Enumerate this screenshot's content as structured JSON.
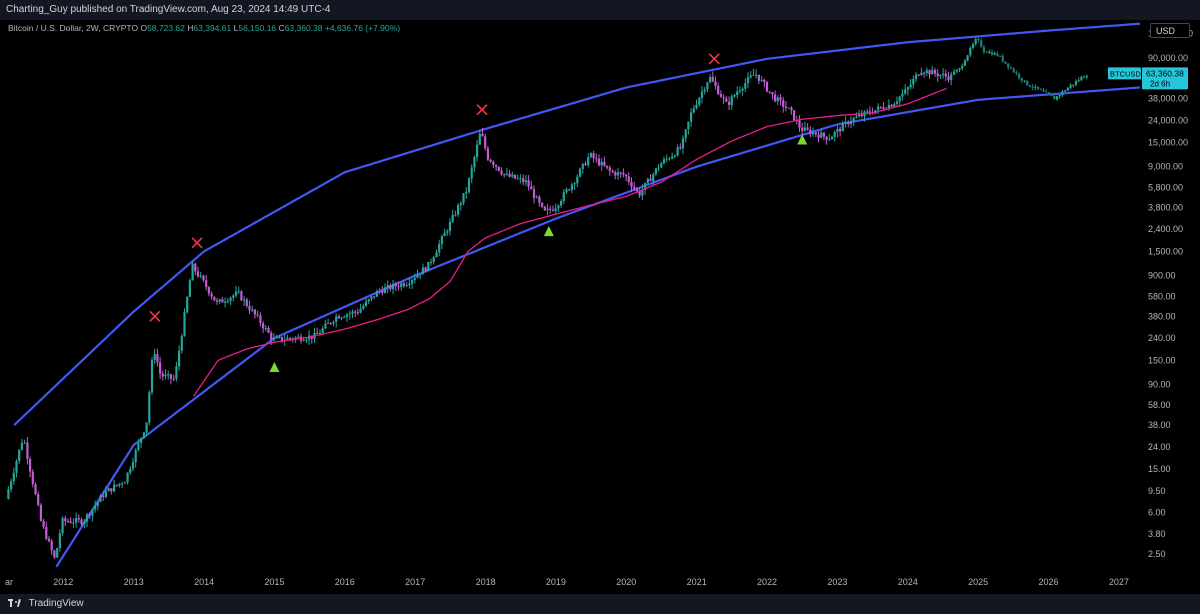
{
  "header": {
    "publish_line": "Charting_Guy published on TradingView.com, Aug 23, 2024 14:49 UTC-4"
  },
  "legend": {
    "title": "Bitcoin / U.S. Dollar, 2W, CRYPTO",
    "open_label": "O",
    "open_value": "58,723.62",
    "high_label": "H",
    "high_value": "63,394.61",
    "low_label": "L",
    "low_value": "56,150.16",
    "close_label": "C",
    "close_value": "63,360.38",
    "change": "+4,636.76 (+7.90%)"
  },
  "axis": {
    "currency_button": "USD",
    "cut_label": "ar"
  },
  "price_tag": {
    "symbol": "BTCUSD",
    "price": "63,360.38",
    "countdown": "2d 6h"
  },
  "footer": {
    "brand": "TradingView"
  },
  "colors": {
    "up": "#26a69a",
    "down": "#c45bd8",
    "channel": "#4158f5",
    "ma": "#e91e8c",
    "top_marker": "#f23645",
    "bottom_marker": "#7dda2d",
    "tag_bg": "#26c6da"
  },
  "chart_data": {
    "type": "candlestick",
    "symbol": "BTCUSD",
    "interval": "2W",
    "y_scale": "log",
    "ylim": [
      1.6,
      200000
    ],
    "xlim": [
      2011.1,
      2027.3
    ],
    "y_ticks": [
      "150,000.00",
      "90,000.00",
      "38,000.00",
      "24,000.00",
      "15,000.00",
      "9,000.00",
      "5,800.00",
      "3,800.00",
      "2,400.00",
      "1,500.00",
      "900.00",
      "580.00",
      "380.00",
      "240.00",
      "150.00",
      "90.00",
      "58.00",
      "38.00",
      "24.00",
      "15.00",
      "9.50",
      "6.00",
      "3.80",
      "2.50"
    ],
    "y_tick_values": [
      150000,
      90000,
      38000,
      24000,
      15000,
      9000,
      5800,
      3800,
      2400,
      1500,
      900,
      580,
      380,
      240,
      150,
      90,
      58,
      38,
      24,
      15,
      9.5,
      6,
      3.8,
      2.5
    ],
    "x_ticks": [
      "2012",
      "2013",
      "2014",
      "2015",
      "2016",
      "2017",
      "2018",
      "2019",
      "2020",
      "2021",
      "2022",
      "2023",
      "2024",
      "2025",
      "2026",
      "2027"
    ],
    "x_tick_values": [
      2012,
      2013,
      2014,
      2015,
      2016,
      2017,
      2018,
      2019,
      2020,
      2021,
      2022,
      2023,
      2024,
      2025,
      2026,
      2027
    ],
    "price_path": [
      [
        2011.2,
        8
      ],
      [
        2011.45,
        30
      ],
      [
        2011.7,
        5
      ],
      [
        2011.9,
        2.2
      ],
      [
        2012.0,
        5
      ],
      [
        2012.3,
        5
      ],
      [
        2012.6,
        9
      ],
      [
        2012.9,
        12
      ],
      [
        2013.2,
        40
      ],
      [
        2013.3,
        200
      ],
      [
        2013.4,
        110
      ],
      [
        2013.6,
        100
      ],
      [
        2013.85,
        1100
      ],
      [
        2014.0,
        800
      ],
      [
        2014.2,
        500
      ],
      [
        2014.5,
        620
      ],
      [
        2014.8,
        350
      ],
      [
        2015.0,
        230
      ],
      [
        2015.3,
        240
      ],
      [
        2015.6,
        250
      ],
      [
        2015.9,
        380
      ],
      [
        2016.2,
        420
      ],
      [
        2016.5,
        650
      ],
      [
        2016.9,
        780
      ],
      [
        2017.2,
        1100
      ],
      [
        2017.5,
        2600
      ],
      [
        2017.75,
        5500
      ],
      [
        2017.95,
        19000
      ],
      [
        2018.05,
        11000
      ],
      [
        2018.3,
        7500
      ],
      [
        2018.6,
        6500
      ],
      [
        2018.85,
        3400
      ],
      [
        2019.0,
        3800
      ],
      [
        2019.3,
        7000
      ],
      [
        2019.5,
        11500
      ],
      [
        2019.8,
        8000
      ],
      [
        2020.0,
        7500
      ],
      [
        2020.2,
        5000
      ],
      [
        2020.5,
        9500
      ],
      [
        2020.8,
        13500
      ],
      [
        2020.95,
        29000
      ],
      [
        2021.2,
        60000
      ],
      [
        2021.45,
        33000
      ],
      [
        2021.6,
        45000
      ],
      [
        2021.85,
        65000
      ],
      [
        2022.1,
        40000
      ],
      [
        2022.35,
        29000
      ],
      [
        2022.5,
        20000
      ],
      [
        2022.9,
        16500
      ],
      [
        2023.2,
        24000
      ],
      [
        2023.5,
        29000
      ],
      [
        2023.8,
        34000
      ],
      [
        2024.0,
        45000
      ],
      [
        2024.2,
        70000
      ],
      [
        2024.6,
        60000
      ]
    ],
    "projection_path": [
      [
        2024.6,
        62000
      ],
      [
        2024.75,
        70000
      ],
      [
        2024.9,
        105000
      ],
      [
        2025.0,
        135000
      ],
      [
        2025.1,
        105000
      ],
      [
        2025.3,
        95000
      ],
      [
        2025.5,
        70000
      ],
      [
        2025.7,
        52000
      ],
      [
        2025.9,
        45000
      ],
      [
        2026.1,
        38000
      ],
      [
        2026.3,
        48000
      ],
      [
        2026.55,
        63360
      ]
    ],
    "moving_average": [
      [
        2013.85,
        70
      ],
      [
        2014.2,
        150
      ],
      [
        2014.6,
        190
      ],
      [
        2015.0,
        220
      ],
      [
        2015.5,
        245
      ],
      [
        2016.0,
        290
      ],
      [
        2016.5,
        360
      ],
      [
        2016.9,
        440
      ],
      [
        2017.2,
        550
      ],
      [
        2017.5,
        800
      ],
      [
        2017.75,
        1500
      ],
      [
        2018.0,
        2000
      ],
      [
        2018.5,
        2700
      ],
      [
        2019.0,
        3300
      ],
      [
        2019.5,
        4000
      ],
      [
        2020.0,
        4800
      ],
      [
        2020.5,
        6500
      ],
      [
        2021.0,
        10500
      ],
      [
        2021.5,
        15500
      ],
      [
        2022.0,
        21000
      ],
      [
        2022.5,
        24500
      ],
      [
        2023.0,
        26500
      ],
      [
        2023.5,
        28000
      ],
      [
        2024.0,
        34000
      ],
      [
        2024.55,
        47000
      ]
    ],
    "channel_upper": [
      [
        2011.3,
        38
      ],
      [
        2013.0,
        420
      ],
      [
        2014.0,
        1500
      ],
      [
        2016.0,
        8000
      ],
      [
        2018.0,
        20000
      ],
      [
        2020.0,
        48000
      ],
      [
        2022.0,
        88000
      ],
      [
        2024.0,
        125000
      ],
      [
        2026.0,
        160000
      ],
      [
        2027.3,
        185000
      ]
    ],
    "channel_lower": [
      [
        2011.9,
        1.9
      ],
      [
        2013.0,
        25
      ],
      [
        2015.0,
        240
      ],
      [
        2017.0,
        900
      ],
      [
        2019.0,
        3000
      ],
      [
        2021.0,
        9000
      ],
      [
        2023.0,
        22000
      ],
      [
        2025.0,
        37000
      ],
      [
        2027.3,
        48000
      ]
    ],
    "tops": [
      [
        2013.3,
        380
      ],
      [
        2013.9,
        1800
      ],
      [
        2017.95,
        30000
      ],
      [
        2021.25,
        88000
      ]
    ],
    "bottoms": [
      [
        2015.0,
        130
      ],
      [
        2018.9,
        2300
      ],
      [
        2022.5,
        16000
      ]
    ]
  }
}
